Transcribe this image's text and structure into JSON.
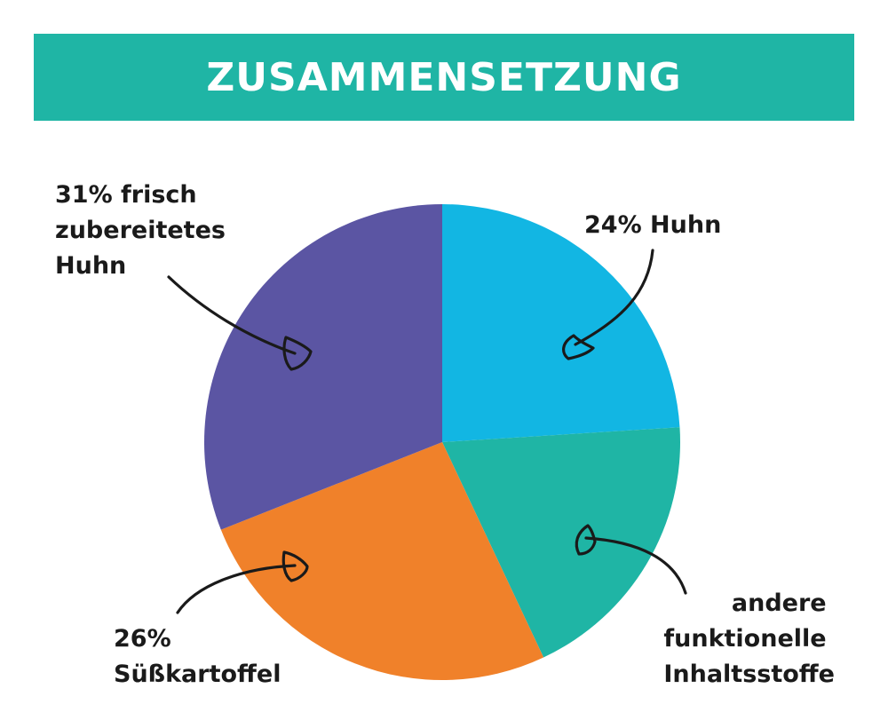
{
  "header": {
    "title": "ZUSAMMENSETZUNG",
    "background": "#1fb5a5"
  },
  "chart_data": {
    "type": "pie",
    "title": "ZUSAMMENSETZUNG",
    "slices": [
      {
        "key": "huhn",
        "value": 24,
        "color": "#12b6e3",
        "label_lines": [
          "24% Huhn"
        ]
      },
      {
        "key": "andere",
        "value": 19,
        "color": "#1fb5a5",
        "label_lines": [
          "andere",
          "funktionelle",
          "Inhaltsstoffe"
        ]
      },
      {
        "key": "suesskartoffel",
        "value": 26,
        "color": "#f0812a",
        "label_lines": [
          "26%",
          "Süßkartoffel"
        ]
      },
      {
        "key": "frisch",
        "value": 31,
        "color": "#5b55a3",
        "label_lines": [
          "31% frisch",
          "zubereitetes",
          "Huhn"
        ]
      }
    ]
  }
}
